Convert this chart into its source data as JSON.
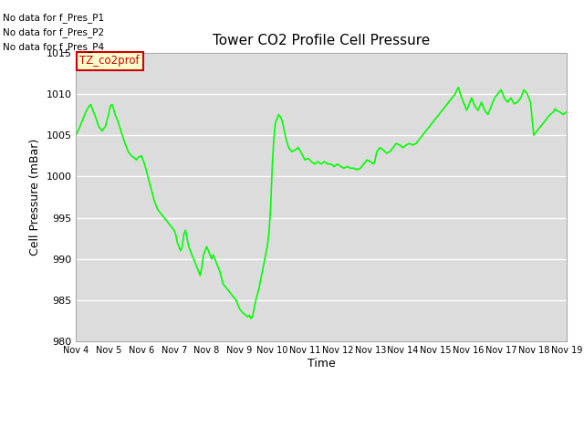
{
  "title": "Tower CO2 Profile Cell Pressure",
  "xlabel": "Time",
  "ylabel": "Cell Pressure (mBar)",
  "ylim": [
    980,
    1015
  ],
  "xlim": [
    0,
    15
  ],
  "line_color": "#00FF00",
  "line_width": 1.2,
  "background_color": "#ffffff",
  "plot_bg_color": "#dcdcdc",
  "legend_line_color": "#00FF00",
  "no_data_texts": [
    "No data for f_Pres_P1",
    "No data for f_Pres_P2",
    "No data for f_Pres_P4"
  ],
  "legend_box_text": "TZ_co2prof",
  "legend_box_bg": "#ffffcc",
  "legend_box_border": "#cc0000",
  "legend_box_text_color": "#cc0000",
  "x_tick_labels": [
    "Nov 4",
    "Nov 5",
    "Nov 6",
    "Nov 7",
    "Nov 8",
    "Nov 9",
    "Nov 10",
    "Nov 11",
    "Nov 12",
    "Nov 13",
    "Nov 14",
    "Nov 15",
    "Nov 16",
    "Nov 17",
    "Nov 18",
    "Nov 19"
  ],
  "x_tick_positions": [
    0,
    1,
    2,
    3,
    4,
    5,
    6,
    7,
    8,
    9,
    10,
    11,
    12,
    13,
    14,
    15
  ],
  "y_tick_positions": [
    980,
    985,
    990,
    995,
    1000,
    1005,
    1010,
    1015
  ],
  "series": [
    [
      0.0,
      1005.0
    ],
    [
      0.1,
      1005.8
    ],
    [
      0.2,
      1006.8
    ],
    [
      0.3,
      1007.8
    ],
    [
      0.4,
      1008.5
    ],
    [
      0.45,
      1008.7
    ],
    [
      0.5,
      1008.2
    ],
    [
      0.6,
      1007.2
    ],
    [
      0.7,
      1006.0
    ],
    [
      0.75,
      1005.8
    ],
    [
      0.8,
      1005.5
    ],
    [
      0.85,
      1005.8
    ],
    [
      0.9,
      1006.0
    ],
    [
      0.95,
      1006.8
    ],
    [
      1.0,
      1007.5
    ],
    [
      1.05,
      1008.5
    ],
    [
      1.1,
      1008.7
    ],
    [
      1.15,
      1008.2
    ],
    [
      1.2,
      1007.5
    ],
    [
      1.3,
      1006.5
    ],
    [
      1.4,
      1005.2
    ],
    [
      1.5,
      1004.0
    ],
    [
      1.6,
      1003.0
    ],
    [
      1.7,
      1002.5
    ],
    [
      1.8,
      1002.2
    ],
    [
      1.85,
      1002.0
    ],
    [
      1.9,
      1002.3
    ],
    [
      2.0,
      1002.5
    ],
    [
      2.1,
      1001.5
    ],
    [
      2.2,
      1000.0
    ],
    [
      2.3,
      998.5
    ],
    [
      2.4,
      997.0
    ],
    [
      2.5,
      996.0
    ],
    [
      2.6,
      995.5
    ],
    [
      2.7,
      995.0
    ],
    [
      2.8,
      994.5
    ],
    [
      2.9,
      994.0
    ],
    [
      3.0,
      993.5
    ],
    [
      3.05,
      993.0
    ],
    [
      3.1,
      992.0
    ],
    [
      3.15,
      991.5
    ],
    [
      3.2,
      991.0
    ],
    [
      3.25,
      991.5
    ],
    [
      3.3,
      993.0
    ],
    [
      3.35,
      993.5
    ],
    [
      3.4,
      992.5
    ],
    [
      3.45,
      991.5
    ],
    [
      3.5,
      991.0
    ],
    [
      3.55,
      990.5
    ],
    [
      3.6,
      990.0
    ],
    [
      3.65,
      989.5
    ],
    [
      3.7,
      989.0
    ],
    [
      3.75,
      988.5
    ],
    [
      3.8,
      988.0
    ],
    [
      3.85,
      989.0
    ],
    [
      3.9,
      990.5
    ],
    [
      3.95,
      991.0
    ],
    [
      4.0,
      991.5
    ],
    [
      4.05,
      991.0
    ],
    [
      4.1,
      990.5
    ],
    [
      4.15,
      990.0
    ],
    [
      4.2,
      990.5
    ],
    [
      4.3,
      989.5
    ],
    [
      4.4,
      988.5
    ],
    [
      4.5,
      987.0
    ],
    [
      4.6,
      986.5
    ],
    [
      4.7,
      986.0
    ],
    [
      4.8,
      985.5
    ],
    [
      4.9,
      985.0
    ],
    [
      5.0,
      984.0
    ],
    [
      5.1,
      983.5
    ],
    [
      5.2,
      983.2
    ],
    [
      5.25,
      983.0
    ],
    [
      5.3,
      983.2
    ],
    [
      5.35,
      982.8
    ],
    [
      5.4,
      983.0
    ],
    [
      5.5,
      985.0
    ],
    [
      5.6,
      986.5
    ],
    [
      5.65,
      987.5
    ],
    [
      5.7,
      988.5
    ],
    [
      5.75,
      989.5
    ],
    [
      5.8,
      990.5
    ],
    [
      5.85,
      991.5
    ],
    [
      5.9,
      993.0
    ],
    [
      5.95,
      996.0
    ],
    [
      6.0,
      1001.0
    ],
    [
      6.05,
      1004.5
    ],
    [
      6.1,
      1006.5
    ],
    [
      6.15,
      1007.0
    ],
    [
      6.2,
      1007.5
    ],
    [
      6.25,
      1007.2
    ],
    [
      6.3,
      1006.8
    ],
    [
      6.35,
      1006.0
    ],
    [
      6.4,
      1005.0
    ],
    [
      6.5,
      1003.5
    ],
    [
      6.6,
      1003.0
    ],
    [
      6.7,
      1003.2
    ],
    [
      6.8,
      1003.5
    ],
    [
      6.9,
      1002.8
    ],
    [
      7.0,
      1002.0
    ],
    [
      7.1,
      1002.2
    ],
    [
      7.2,
      1001.8
    ],
    [
      7.3,
      1001.5
    ],
    [
      7.4,
      1001.8
    ],
    [
      7.5,
      1001.5
    ],
    [
      7.6,
      1001.8
    ],
    [
      7.7,
      1001.5
    ],
    [
      7.8,
      1001.5
    ],
    [
      7.9,
      1001.2
    ],
    [
      8.0,
      1001.5
    ],
    [
      8.1,
      1001.2
    ],
    [
      8.2,
      1001.0
    ],
    [
      8.3,
      1001.2
    ],
    [
      8.4,
      1001.0
    ],
    [
      8.5,
      1001.0
    ],
    [
      8.6,
      1000.8
    ],
    [
      8.7,
      1001.0
    ],
    [
      8.8,
      1001.5
    ],
    [
      8.9,
      1002.0
    ],
    [
      9.0,
      1001.8
    ],
    [
      9.1,
      1001.5
    ],
    [
      9.15,
      1002.0
    ],
    [
      9.2,
      1003.0
    ],
    [
      9.3,
      1003.5
    ],
    [
      9.4,
      1003.2
    ],
    [
      9.5,
      1002.8
    ],
    [
      9.6,
      1003.0
    ],
    [
      9.7,
      1003.5
    ],
    [
      9.8,
      1004.0
    ],
    [
      9.9,
      1003.8
    ],
    [
      10.0,
      1003.5
    ],
    [
      10.1,
      1003.8
    ],
    [
      10.2,
      1004.0
    ],
    [
      10.3,
      1003.8
    ],
    [
      10.4,
      1004.0
    ],
    [
      10.5,
      1004.5
    ],
    [
      10.6,
      1005.0
    ],
    [
      10.7,
      1005.5
    ],
    [
      10.8,
      1006.0
    ],
    [
      10.9,
      1006.5
    ],
    [
      11.0,
      1007.0
    ],
    [
      11.1,
      1007.5
    ],
    [
      11.2,
      1008.0
    ],
    [
      11.3,
      1008.5
    ],
    [
      11.4,
      1009.0
    ],
    [
      11.5,
      1009.5
    ],
    [
      11.6,
      1010.0
    ],
    [
      11.65,
      1010.5
    ],
    [
      11.7,
      1010.8
    ],
    [
      11.75,
      1010.0
    ],
    [
      11.8,
      1009.5
    ],
    [
      11.85,
      1009.0
    ],
    [
      11.9,
      1008.5
    ],
    [
      11.95,
      1008.0
    ],
    [
      12.0,
      1008.5
    ],
    [
      12.05,
      1009.0
    ],
    [
      12.1,
      1009.5
    ],
    [
      12.15,
      1009.0
    ],
    [
      12.2,
      1008.5
    ],
    [
      12.3,
      1008.0
    ],
    [
      12.35,
      1008.5
    ],
    [
      12.4,
      1009.0
    ],
    [
      12.5,
      1008.0
    ],
    [
      12.6,
      1007.5
    ],
    [
      12.65,
      1008.0
    ],
    [
      12.7,
      1008.5
    ],
    [
      12.75,
      1009.0
    ],
    [
      12.8,
      1009.5
    ],
    [
      12.9,
      1010.0
    ],
    [
      13.0,
      1010.5
    ],
    [
      13.05,
      1010.0
    ],
    [
      13.1,
      1009.5
    ],
    [
      13.2,
      1009.0
    ],
    [
      13.3,
      1009.5
    ],
    [
      13.4,
      1008.8
    ],
    [
      13.5,
      1009.0
    ],
    [
      13.6,
      1009.5
    ],
    [
      13.65,
      1010.0
    ],
    [
      13.7,
      1010.5
    ],
    [
      13.8,
      1010.0
    ],
    [
      13.85,
      1009.5
    ],
    [
      13.9,
      1009.0
    ],
    [
      14.0,
      1005.0
    ],
    [
      14.1,
      1005.5
    ],
    [
      14.2,
      1006.0
    ],
    [
      14.3,
      1006.5
    ],
    [
      14.4,
      1007.0
    ],
    [
      14.5,
      1007.5
    ],
    [
      14.6,
      1007.8
    ],
    [
      14.65,
      1008.2
    ],
    [
      14.7,
      1008.0
    ],
    [
      14.8,
      1007.8
    ],
    [
      14.9,
      1007.5
    ],
    [
      15.0,
      1007.8
    ]
  ]
}
